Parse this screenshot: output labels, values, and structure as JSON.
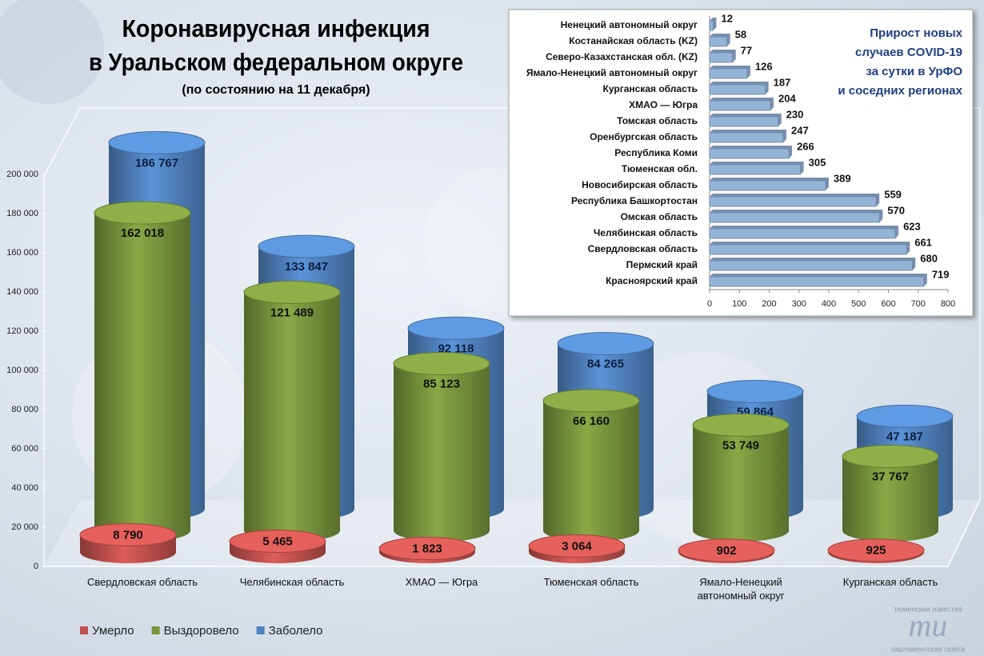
{
  "chart_data": [
    {
      "type": "cylinder",
      "title": [
        "Коронавирусная инфекция",
        "в Уральском федеральном округе"
      ],
      "subtitle": "(по состоянию на 11 декабря)",
      "categories": [
        "Свердловская область",
        "Челябинская область",
        "ХМАО — Югра",
        "Тюменская область",
        "Ямало-Ненецкий автономный округ",
        "Курганская область"
      ],
      "series": [
        {
          "name": "Умерло",
          "color": "#c0504d",
          "values": [
            8790,
            5465,
            1823,
            3064,
            902,
            925
          ],
          "value_labels": [
            "8 790",
            "5 465",
            "1 823",
            "3 064",
            "902",
            "925"
          ]
        },
        {
          "name": "Выздоровело",
          "color": "#77933c",
          "values": [
            162018,
            121489,
            85123,
            66160,
            53749,
            37767
          ],
          "value_labels": [
            "162 018",
            "121 489",
            "85 123",
            "66 160",
            "53 749",
            "37 767"
          ]
        },
        {
          "name": "Заболело",
          "color": "#4f81bd",
          "values": [
            186767,
            133847,
            92118,
            84265,
            59864,
            47187
          ],
          "value_labels": [
            "186 767",
            "133 847",
            "92 118",
            "84 265",
            "59 864",
            "47 187"
          ]
        }
      ],
      "ylim": [
        0,
        200000
      ],
      "yticks": [
        0,
        {
          "value": 20000,
          "label": "20 000"
        },
        {
          "value": 40000,
          "label": "40 000"
        },
        {
          "value": 60000,
          "label": "60 000"
        },
        {
          "value": 80000,
          "label": "80 000"
        },
        {
          "value": 100000,
          "label": "100 000"
        },
        {
          "value": 120000,
          "label": "120 000"
        },
        {
          "value": 140000,
          "label": "140 000"
        },
        {
          "value": 160000,
          "label": "160 000"
        },
        {
          "value": 180000,
          "label": "180 000"
        },
        {
          "value": 200000,
          "label": "200 000"
        }
      ],
      "legend": "bottom"
    },
    {
      "type": "hbar",
      "title": [
        "Прирост новых",
        "случаев COVID-19",
        "за сутки в УрФО",
        "и соседних регионах"
      ],
      "categories": [
        "Ненецкий автономный округ",
        "Костанайская область (KZ)",
        "Северо-Казахстанская обл. (KZ)",
        "Ямало-Ненецкий автономный округ",
        "Курганская область",
        "ХМАО — Югра",
        "Томская область",
        "Оренбургская область",
        "Республика Коми",
        "Тюменская обл.",
        "Новосибирская область",
        "Республика Башкортостан",
        "Омская область",
        "Челябинская область",
        "Свердловская область",
        "Пермский край",
        "Красноярский край"
      ],
      "values": [
        12,
        58,
        77,
        126,
        187,
        204,
        230,
        247,
        266,
        305,
        389,
        559,
        570,
        623,
        661,
        680,
        719
      ],
      "color": "#95b3d7",
      "xlim": [
        0,
        800
      ],
      "xticks": [
        0,
        100,
        200,
        300,
        400,
        500,
        600,
        700,
        800
      ]
    }
  ],
  "logo": [
    "тюменские известия",
    "ти",
    "парламентская газета"
  ]
}
